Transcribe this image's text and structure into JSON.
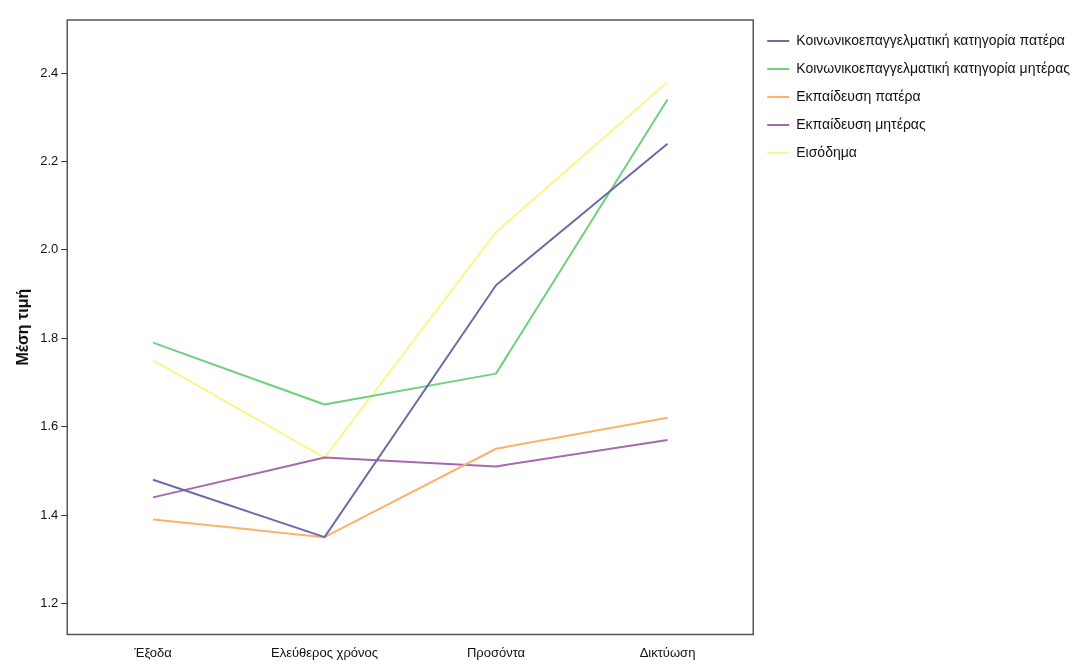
{
  "chart_data": {
    "type": "line",
    "ylabel": "Μέση τιμή",
    "categories": [
      "Έξοδα",
      "Ελεύθερος χρόνος",
      "Προσόντα",
      "Δικτύωση"
    ],
    "series": [
      {
        "name": "Κοινωνικοεπαγγελματική κατηγορία πατέρα",
        "color": "#6b6ba8",
        "values": [
          1.48,
          1.35,
          1.92,
          2.24
        ]
      },
      {
        "name": "Κοινωνικοεπαγγελματική κατηγορία μητέρας",
        "color": "#6fd07f",
        "values": [
          1.79,
          1.65,
          1.72,
          2.34
        ]
      },
      {
        "name": "Εκπαίδευση πατέρα",
        "color": "#fbb26a",
        "values": [
          1.39,
          1.35,
          1.55,
          1.62
        ]
      },
      {
        "name": "Εκπαίδευση μητέρας",
        "color": "#a868b0",
        "values": [
          1.44,
          1.53,
          1.51,
          1.57
        ]
      },
      {
        "name": "Εισόδημα",
        "color": "#fbf58e",
        "values": [
          1.75,
          1.53,
          2.04,
          2.38
        ]
      }
    ],
    "ylim": [
      1.13,
      2.52
    ],
    "yticks": [
      1.2,
      1.4,
      1.6,
      1.8,
      {
        "value": 2,
        "label": "2.0"
      },
      2.2,
      2.4
    ],
    "grid": false,
    "legend": "top right",
    "marker": "none",
    "line_style": "solid"
  }
}
